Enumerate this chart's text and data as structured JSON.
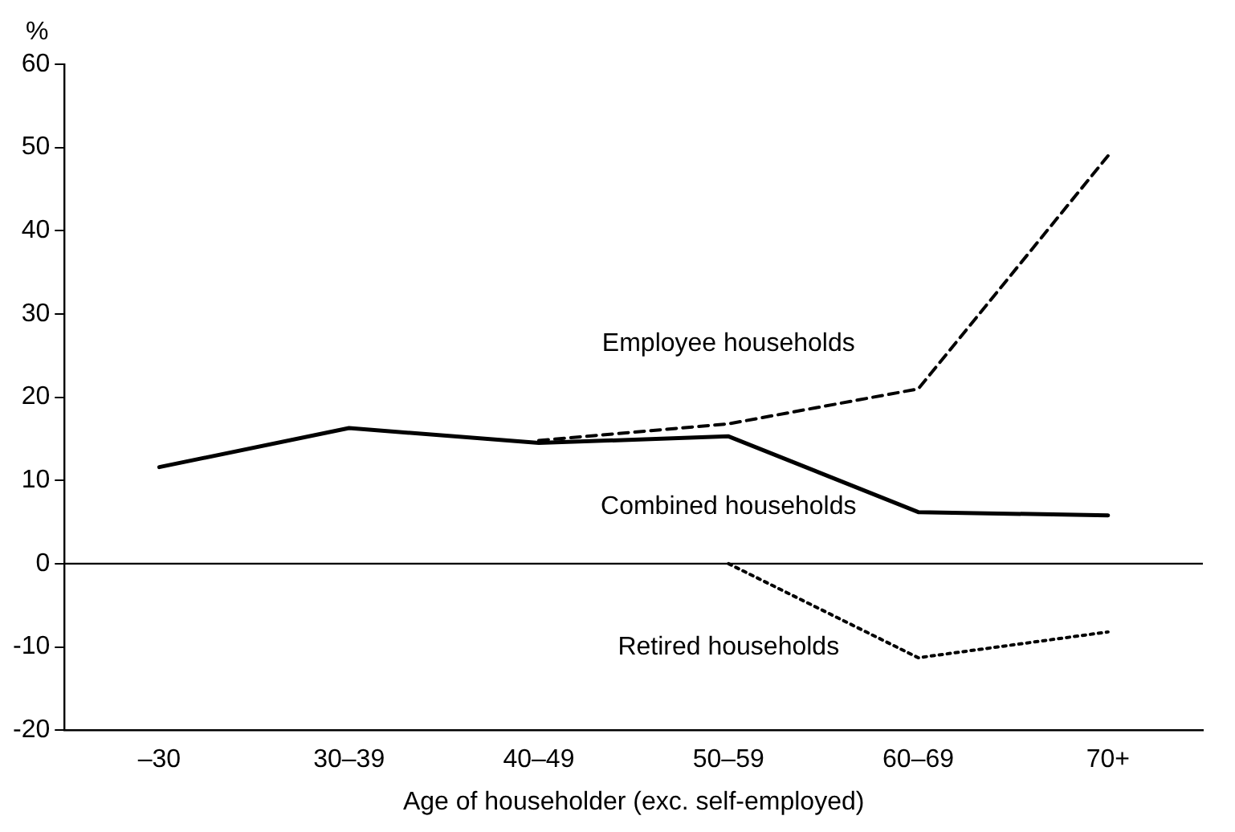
{
  "chart_data": {
    "type": "line",
    "xlabel": "Age of householder (exc. self-employed)",
    "ylabel": "%",
    "categories": [
      "–30",
      "30–39",
      "40–49",
      "50–59",
      "60–69",
      "70+"
    ],
    "series": [
      {
        "name": "Combined households",
        "color": "#000000",
        "line_style": "solid",
        "values": [
          11.6,
          16.3,
          14.5,
          15.3,
          6.2,
          5.8
        ]
      },
      {
        "name": "Employee households",
        "color": "#000000",
        "line_style": "dashed",
        "values": [
          null,
          null,
          14.8,
          16.8,
          21,
          49
        ]
      },
      {
        "name": "Retired households",
        "color": "#000000",
        "line_style": "dotted",
        "values": [
          null,
          null,
          null,
          0,
          -11.3,
          -8.2
        ]
      }
    ],
    "ylim": [
      -20,
      60
    ],
    "yticks": [
      -20,
      -10,
      0,
      10,
      20,
      30,
      40,
      50,
      60
    ],
    "grid": false,
    "legend": false,
    "marker": "none",
    "ref_lines": [
      {
        "axis": "y",
        "value": 0,
        "color": "#000000"
      }
    ]
  }
}
